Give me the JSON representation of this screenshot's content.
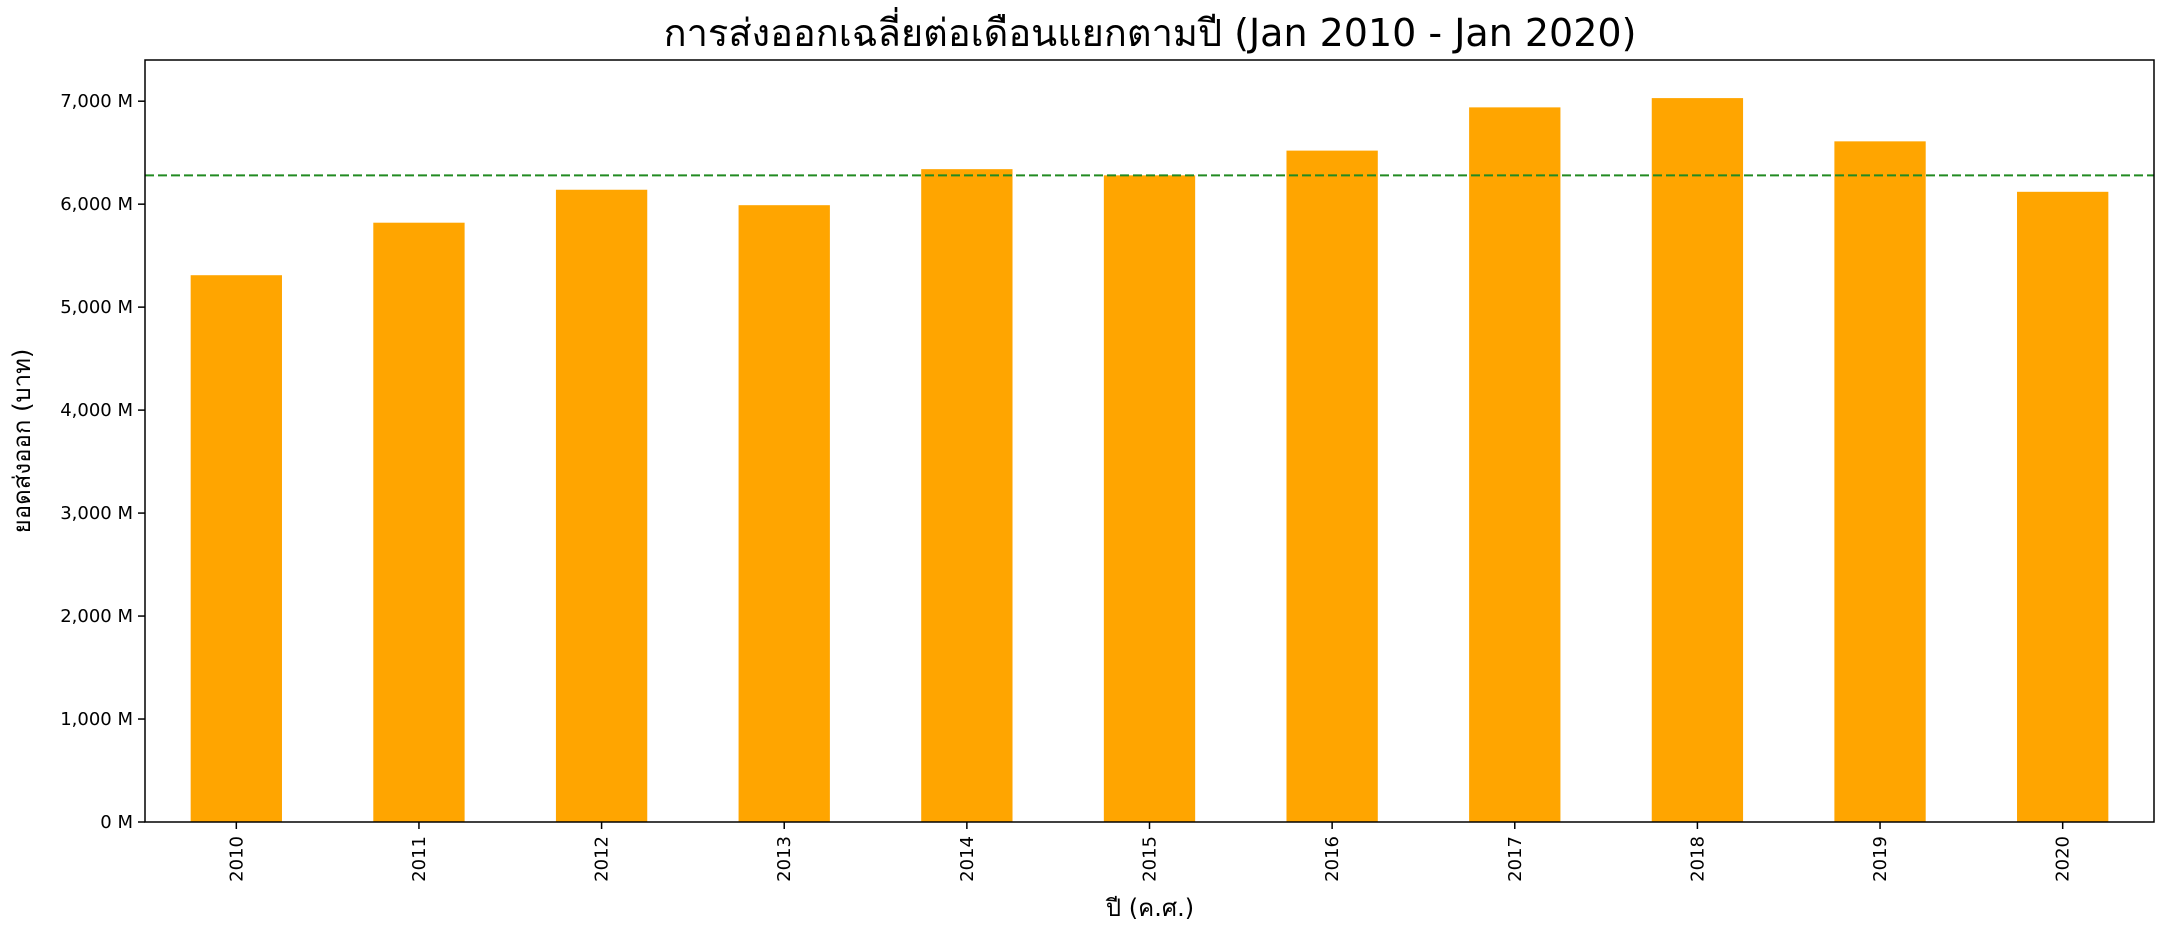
{
  "chart_data": {
    "type": "bar",
    "title": "การส่งออกเฉลี่ยต่อเดือนแยกตามปี (Jan 2010 - Jan 2020)",
    "xlabel": "ปี (ค.ศ.)",
    "ylabel": "ยอดส่งออก (บาท)",
    "categories": [
      "2010",
      "2011",
      "2012",
      "2013",
      "2014",
      "2015",
      "2016",
      "2017",
      "2018",
      "2019",
      "2020"
    ],
    "values": [
      5310,
      5820,
      6140,
      5990,
      6340,
      6280,
      6520,
      6940,
      7030,
      6610,
      6120
    ],
    "value_unit": "M",
    "ylim": [
      0,
      7400
    ],
    "yticks": [
      0,
      1000,
      2000,
      3000,
      4000,
      5000,
      6000,
      7000
    ],
    "ytick_labels": [
      "0 M",
      "1,000 M",
      "2,000 M",
      "3,000 M",
      "4,000 M",
      "5,000 M",
      "6,000 M",
      "7,000 M"
    ],
    "reference_line": {
      "value": 6280,
      "style": "dashed",
      "color": "#228b22"
    },
    "bar_color": "#ffa500",
    "grid": false,
    "legend": "none"
  }
}
